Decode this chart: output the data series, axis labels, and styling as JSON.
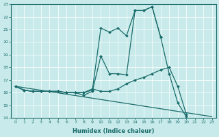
{
  "xlabel": "Humidex (Indice chaleur)",
  "xlim": [
    -0.5,
    23.5
  ],
  "ylim": [
    14,
    23
  ],
  "yticks": [
    14,
    15,
    16,
    17,
    18,
    19,
    20,
    21,
    22,
    23
  ],
  "xticks": [
    0,
    1,
    2,
    3,
    4,
    5,
    6,
    7,
    8,
    9,
    10,
    11,
    12,
    13,
    14,
    15,
    16,
    17,
    18,
    19,
    20,
    21,
    22,
    23
  ],
  "bg_color": "#c8eaea",
  "grid_color": "#b0d8d8",
  "line_color": "#1a6b6b",
  "line1_x": [
    0,
    1,
    2,
    3,
    4,
    5,
    6,
    7,
    8,
    9,
    10,
    11,
    12,
    13,
    14,
    15,
    16,
    17,
    18,
    19,
    20,
    21,
    22,
    23
  ],
  "line1_y": [
    16.5,
    16.2,
    16.1,
    16.1,
    16.1,
    16.1,
    16.0,
    16.0,
    15.8,
    16.1,
    18.9,
    17.5,
    17.5,
    17.4,
    22.5,
    22.5,
    22.8,
    20.4,
    17.5,
    15.2,
    14.1,
    null,
    null,
    null
  ],
  "line2_x": [
    0,
    1,
    2,
    3,
    4,
    5,
    6,
    7,
    8,
    9,
    10,
    11,
    12,
    13,
    14,
    15,
    16,
    17,
    18,
    19,
    20,
    21,
    22,
    23
  ],
  "line2_y": [
    16.5,
    16.2,
    16.1,
    16.1,
    16.1,
    16.1,
    16.0,
    16.0,
    16.0,
    16.2,
    21.1,
    20.8,
    21.1,
    20.5,
    22.5,
    22.5,
    22.8,
    20.4,
    null,
    null,
    null,
    null,
    null,
    null
  ],
  "line3_x": [
    0,
    1,
    2,
    3,
    4,
    5,
    6,
    7,
    8,
    9,
    10,
    11,
    12,
    13,
    14,
    15,
    16,
    17,
    18,
    19,
    20,
    21,
    22,
    23
  ],
  "line3_y": [
    16.5,
    16.2,
    16.1,
    16.1,
    16.1,
    16.1,
    16.0,
    16.0,
    16.0,
    16.3,
    16.1,
    16.1,
    16.3,
    16.7,
    17.0,
    17.2,
    17.5,
    17.8,
    18.0,
    16.5,
    14.3,
    null,
    null,
    null
  ],
  "line4_x": [
    0,
    23
  ],
  "line4_y": [
    16.5,
    14.1
  ]
}
